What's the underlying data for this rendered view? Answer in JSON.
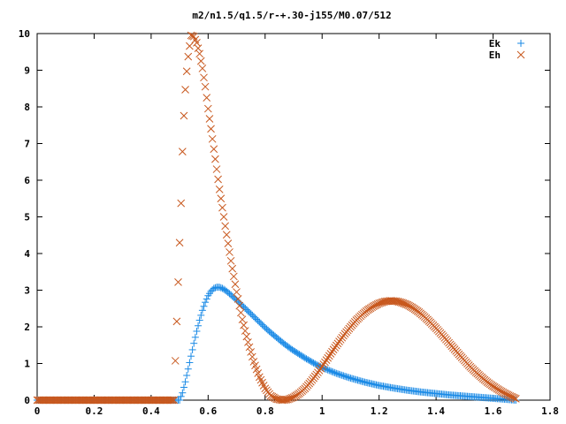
{
  "chart_data": {
    "type": "scatter",
    "title": "m2/n1.5/q1.5/r-+.30-j155/M0.07/512",
    "xlabel": "",
    "ylabel": "",
    "xlim": [
      0,
      1.8
    ],
    "ylim": [
      0,
      10
    ],
    "x_ticks": [
      "0",
      "0.2",
      "0.4",
      "0.6",
      "0.8",
      "1",
      "1.2",
      "1.4",
      "1.6",
      "1.8"
    ],
    "y_ticks": [
      "0",
      "1",
      "2",
      "3",
      "4",
      "5",
      "6",
      "7",
      "8",
      "9",
      "10"
    ],
    "grid": false,
    "legend_position": "top-right",
    "series": [
      {
        "name": "Ek",
        "marker": "plus",
        "color": "#1a8ae6",
        "x": [
          0.0,
          0.1,
          0.2,
          0.3,
          0.4,
          0.48,
          0.5,
          0.51,
          0.52,
          0.53,
          0.54,
          0.55,
          0.56,
          0.57,
          0.58,
          0.59,
          0.6,
          0.61,
          0.62,
          0.63,
          0.64,
          0.65,
          0.66,
          0.67,
          0.68,
          0.7,
          0.72,
          0.74,
          0.76,
          0.78,
          0.8,
          0.82,
          0.84,
          0.86,
          0.88,
          0.9,
          0.92,
          0.94,
          0.96,
          0.98,
          1.0,
          1.05,
          1.1,
          1.15,
          1.2,
          1.25,
          1.3,
          1.35,
          1.4,
          1.45,
          1.5,
          1.55,
          1.6,
          1.65,
          1.68
        ],
        "y": [
          0.0,
          0.0,
          0.0,
          0.0,
          0.0,
          0.0,
          0.0,
          0.2,
          0.5,
          0.85,
          1.2,
          1.55,
          1.88,
          2.18,
          2.45,
          2.67,
          2.85,
          2.97,
          3.05,
          3.08,
          3.08,
          3.05,
          3.0,
          2.94,
          2.87,
          2.73,
          2.58,
          2.43,
          2.28,
          2.13,
          1.98,
          1.84,
          1.71,
          1.58,
          1.46,
          1.35,
          1.25,
          1.15,
          1.06,
          0.97,
          0.89,
          0.73,
          0.6,
          0.49,
          0.4,
          0.33,
          0.27,
          0.22,
          0.18,
          0.14,
          0.11,
          0.08,
          0.05,
          0.02,
          0.0
        ]
      },
      {
        "name": "Eh",
        "marker": "cross",
        "color": "#c8581e",
        "x": [
          0.0,
          0.1,
          0.2,
          0.3,
          0.4,
          0.48,
          0.495,
          0.505,
          0.51,
          0.515,
          0.52,
          0.525,
          0.53,
          0.54,
          0.55,
          0.56,
          0.57,
          0.58,
          0.59,
          0.6,
          0.62,
          0.64,
          0.66,
          0.68,
          0.7,
          0.72,
          0.74,
          0.76,
          0.78,
          0.8,
          0.82,
          0.84,
          0.86,
          0.88,
          0.9,
          0.92,
          0.94,
          0.96,
          0.98,
          1.0,
          1.02,
          1.04,
          1.06,
          1.08,
          1.1,
          1.12,
          1.14,
          1.16,
          1.18,
          1.2,
          1.22,
          1.24,
          1.26,
          1.28,
          1.3,
          1.32,
          1.34,
          1.36,
          1.38,
          1.4,
          1.42,
          1.44,
          1.46,
          1.48,
          1.5,
          1.52,
          1.54,
          1.56,
          1.58,
          1.6,
          1.62,
          1.64,
          1.66,
          1.68
        ],
        "y": [
          0.0,
          0.0,
          0.0,
          0.0,
          0.0,
          0.0,
          3.22,
          5.37,
          6.78,
          7.76,
          8.47,
          8.97,
          9.37,
          9.95,
          9.92,
          9.75,
          9.45,
          9.05,
          8.55,
          7.95,
          6.85,
          5.75,
          4.75,
          3.8,
          2.95,
          2.2,
          1.58,
          1.05,
          0.63,
          0.32,
          0.12,
          0.03,
          0.0,
          0.02,
          0.08,
          0.18,
          0.32,
          0.5,
          0.7,
          0.92,
          1.15,
          1.38,
          1.6,
          1.81,
          2.0,
          2.18,
          2.33,
          2.46,
          2.56,
          2.64,
          2.69,
          2.71,
          2.7,
          2.66,
          2.6,
          2.51,
          2.4,
          2.27,
          2.12,
          1.96,
          1.79,
          1.61,
          1.43,
          1.25,
          1.08,
          0.91,
          0.76,
          0.62,
          0.49,
          0.38,
          0.28,
          0.19,
          0.11,
          0.04
        ]
      }
    ]
  }
}
